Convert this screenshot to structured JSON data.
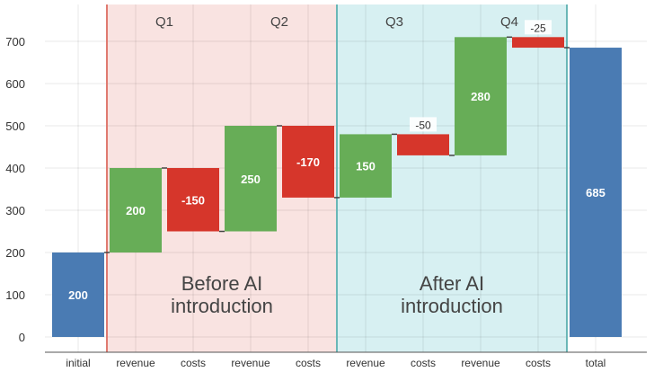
{
  "chart_data": {
    "type": "waterfall",
    "categories": [
      "initial",
      "revenue",
      "costs",
      "revenue",
      "costs",
      "revenue",
      "costs",
      "revenue",
      "costs",
      "total"
    ],
    "values": [
      200,
      200,
      -150,
      250,
      -170,
      150,
      -50,
      280,
      -25,
      685
    ],
    "measures": [
      "absolute",
      "relative",
      "relative",
      "relative",
      "relative",
      "relative",
      "relative",
      "relative",
      "relative",
      "total"
    ],
    "labels": [
      "200",
      "200",
      "-150",
      "250",
      "-170",
      "150",
      "-50",
      "280",
      "-25",
      "685"
    ],
    "ylim": [
      -35,
      770
    ],
    "yticks": [
      0,
      100,
      200,
      300,
      400,
      500,
      600,
      700
    ],
    "ytick_labels": [
      "0",
      "100",
      "200",
      "300",
      "400",
      "500",
      "600",
      "700"
    ],
    "grid": true,
    "quarters": [
      "Q1",
      "Q2",
      "Q3",
      "Q4"
    ],
    "regions": [
      {
        "label_line1": "Before AI",
        "label_line2": "introduction",
        "from_index": 1,
        "to_index": 4,
        "color": "#f9e3e1",
        "border": "#e07a70"
      },
      {
        "label_line1": "After AI",
        "label_line2": "introduction",
        "from_index": 5,
        "to_index": 8,
        "color": "#d7f0f2",
        "border": "#6ab7b7"
      }
    ],
    "colors": {
      "increasing": "#67ad57",
      "decreasing": "#d6362b",
      "total": "#4a7bb3"
    }
  }
}
